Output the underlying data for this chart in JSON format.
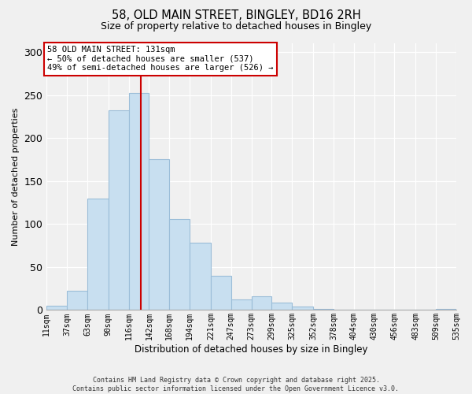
{
  "title": "58, OLD MAIN STREET, BINGLEY, BD16 2RH",
  "subtitle": "Size of property relative to detached houses in Bingley",
  "xlabel": "Distribution of detached houses by size in Bingley",
  "ylabel": "Number of detached properties",
  "bar_color": "#c8dff0",
  "bar_edge_color": "#9bbdd8",
  "background_color": "#f0f0f0",
  "plot_bg_color": "#f0f0f0",
  "grid_color": "#ffffff",
  "bin_edges": [
    11,
    37,
    63,
    90,
    116,
    142,
    168,
    194,
    221,
    247,
    273,
    299,
    325,
    352,
    378,
    404,
    430,
    456,
    483,
    509,
    535
  ],
  "bin_labels": [
    "11sqm",
    "37sqm",
    "63sqm",
    "90sqm",
    "116sqm",
    "142sqm",
    "168sqm",
    "194sqm",
    "221sqm",
    "247sqm",
    "273sqm",
    "299sqm",
    "325sqm",
    "352sqm",
    "378sqm",
    "404sqm",
    "430sqm",
    "456sqm",
    "483sqm",
    "509sqm",
    "535sqm"
  ],
  "counts": [
    5,
    22,
    130,
    232,
    252,
    175,
    106,
    78,
    40,
    12,
    16,
    9,
    4,
    1,
    0,
    0,
    0,
    0,
    0,
    1
  ],
  "vline_x": 131,
  "vline_color": "#cc0000",
  "annotation_title": "58 OLD MAIN STREET: 131sqm",
  "annotation_line1": "← 50% of detached houses are smaller (537)",
  "annotation_line2": "49% of semi-detached houses are larger (526) →",
  "annotation_box_facecolor": "#ffffff",
  "annotation_box_edgecolor": "#cc0000",
  "ylim": [
    0,
    310
  ],
  "yticks": [
    0,
    50,
    100,
    150,
    200,
    250,
    300
  ],
  "footer_line1": "Contains HM Land Registry data © Crown copyright and database right 2025.",
  "footer_line2": "Contains public sector information licensed under the Open Government Licence v3.0."
}
